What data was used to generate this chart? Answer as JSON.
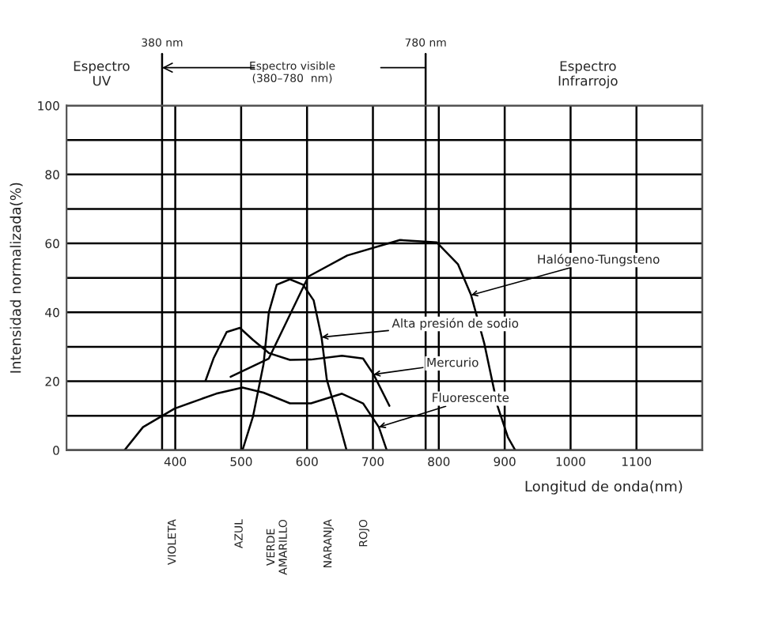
{
  "chart_data": {
    "type": "line",
    "xlabel": "Longitud de onda(nm)",
    "ylabel": "Intensidad normalizada(%)",
    "xlim": [
      235,
      1200
    ],
    "xticks": [
      400,
      500,
      600,
      700,
      800,
      900,
      1000,
      1100,
      {
        "value": 1200,
        "label": null
      }
    ],
    "ylim": [
      0,
      100
    ],
    "yticks": [
      0,
      {
        "value": 10,
        "label": null
      },
      20,
      {
        "value": 30,
        "label": null
      },
      40,
      {
        "value": 50,
        "label": null
      },
      60,
      {
        "value": 70,
        "label": null
      },
      80,
      {
        "value": 90,
        "label": null
      },
      100
    ],
    "grid": true,
    "marker": "none",
    "line_style": "solid",
    "series": [
      {
        "color": "#000000",
        "x": [
          484,
          542,
          602,
          661,
          741,
          797,
          829,
          849,
          869,
          889,
          905,
          916
        ],
        "values": [
          21.3,
          26.6,
          50.4,
          56.5,
          61,
          60.3,
          54,
          45,
          31,
          12.9,
          3.7,
          0
        ]
      },
      {
        "color": "#000000",
        "x": [
          502,
          518,
          534,
          542,
          554,
          574,
          594,
          610,
          622,
          630,
          646,
          660
        ],
        "values": [
          0,
          9.8,
          25,
          40,
          48,
          49.6,
          48,
          43.5,
          32.8,
          20.5,
          9.8,
          0
        ]
      },
      {
        "color": "#000000",
        "x": [
          446,
          458,
          478,
          498,
          518,
          542,
          574,
          606,
          653,
          685,
          701,
          725
        ],
        "values": [
          20.2,
          26.6,
          34.3,
          35.5,
          32,
          28.2,
          26.2,
          26.3,
          27.4,
          26.6,
          22,
          12.9
        ]
      },
      {
        "color": "#000000",
        "x": [
          323,
          351,
          399,
          462,
          502,
          534,
          574,
          606,
          653,
          685,
          709,
          721
        ],
        "values": [
          0,
          6.7,
          12.1,
          16.4,
          18.2,
          16.7,
          13.6,
          13.6,
          16.4,
          13.6,
          6.7,
          0
        ]
      }
    ],
    "ref_lines": [
      {
        "axis": "x",
        "value": 380,
        "label": "380 nm",
        "color": "#000000"
      },
      {
        "axis": "x",
        "value": 780,
        "label": "780 nm",
        "color": "#000000"
      }
    ],
    "annotations": [
      {
        "text": "Halógeno-Tungsteno",
        "x": 849,
        "y": 45
      },
      {
        "text": "Alta presión de sodio",
        "x": 622,
        "y": 32.8
      },
      {
        "text": "Mercurio",
        "x": 701,
        "y": 22
      },
      {
        "text": "Fluorescente",
        "x": 709,
        "y": 6.7
      },
      "Espectro\nUV",
      "Espectro visible\n(380–780  nm)",
      "Espectro\nInfrarrojo",
      "VIOLETA",
      "AZUL",
      "VERDE\nAMARILLO",
      "NARANJA",
      "ROJO"
    ]
  }
}
